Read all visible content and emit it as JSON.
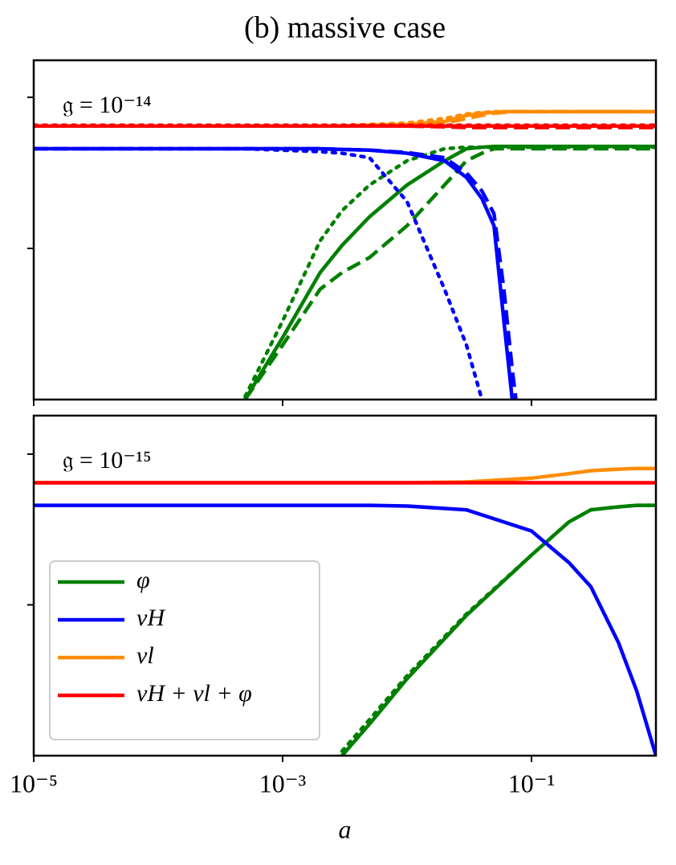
{
  "chart_data": [
    {
      "type": "line",
      "title": "(b) massive case",
      "annotation": "𝔤 = 10⁻¹⁴",
      "xscale": "log",
      "x": [
        1e-05,
        0.0001,
        0.0005,
        0.001,
        0.002,
        0.003,
        0.005,
        0.01,
        0.02,
        0.03,
        0.04,
        0.05,
        0.06,
        0.07,
        0.075,
        0.1,
        1
      ],
      "xlim": [
        1e-05,
        1
      ],
      "xticks": [
        1e-05,
        0.001,
        0.1
      ],
      "ylim": [
        0,
        2.245
      ],
      "yticks": [
        1,
        2
      ],
      "series": [
        {
          "color": "#008000",
          "linestyle": "solid",
          "values": [
            null,
            null,
            0,
            0.41,
            0.84,
            1.02,
            1.21,
            1.42,
            1.58,
            1.66,
            1.67,
            1.675,
            1.675,
            1.675,
            1.675,
            1.675,
            1.675
          ]
        },
        {
          "color": "#008000",
          "linestyle": "dashed",
          "values": [
            null,
            null,
            0,
            0.36,
            0.73,
            0.84,
            0.94,
            1.15,
            1.42,
            1.58,
            1.63,
            1.66,
            1.66,
            1.66,
            1.66,
            1.66,
            1.66
          ]
        },
        {
          "color": "#008000",
          "linestyle": "dotted",
          "values": [
            null,
            null,
            0.02,
            0.52,
            1.05,
            1.25,
            1.42,
            1.58,
            1.66,
            1.67,
            1.67,
            1.67,
            1.67,
            1.67,
            1.67,
            1.67,
            1.67
          ]
        },
        {
          "color": "#0000ff",
          "linestyle": "solid",
          "values": [
            1.66,
            1.66,
            1.66,
            1.66,
            1.66,
            1.655,
            1.65,
            1.63,
            1.58,
            1.47,
            1.33,
            1.15,
            0.52,
            0,
            null,
            null,
            null
          ]
        },
        {
          "color": "#0000ff",
          "linestyle": "dashed",
          "values": [
            1.66,
            1.66,
            1.66,
            1.66,
            1.66,
            1.655,
            1.65,
            1.635,
            1.6,
            1.5,
            1.38,
            1.23,
            0.73,
            0.2,
            0,
            null,
            null
          ]
        },
        {
          "color": "#0000ff",
          "linestyle": "dotted",
          "values": [
            1.66,
            1.66,
            1.66,
            1.65,
            1.64,
            1.63,
            1.6,
            1.31,
            0.73,
            0.36,
            0,
            null,
            null,
            null,
            null,
            null,
            null
          ]
        },
        {
          "color": "#ff8c00",
          "linestyle": "solid",
          "values": [
            1.81,
            1.81,
            1.81,
            1.81,
            1.81,
            1.81,
            1.815,
            1.82,
            1.84,
            1.88,
            1.895,
            1.9,
            1.905,
            1.905,
            1.905,
            1.905,
            1.905
          ]
        },
        {
          "color": "#ff8c00",
          "linestyle": "dashed",
          "values": [
            1.81,
            1.81,
            1.81,
            1.81,
            1.81,
            1.81,
            1.81,
            1.81,
            1.83,
            1.86,
            1.88,
            1.895,
            1.9,
            1.905,
            1.905,
            1.905,
            1.905
          ]
        },
        {
          "color": "#ff8c00",
          "linestyle": "dotted",
          "values": [
            1.815,
            1.815,
            1.815,
            1.815,
            1.815,
            1.815,
            1.82,
            1.83,
            1.86,
            1.89,
            1.9,
            1.905,
            1.905,
            1.905,
            1.905,
            1.905,
            1.905
          ]
        },
        {
          "color": "#ff0000",
          "linestyle": "solid",
          "values": [
            1.81,
            1.81,
            1.81,
            1.81,
            1.81,
            1.81,
            1.81,
            1.81,
            1.81,
            1.81,
            1.81,
            1.81,
            1.81,
            1.81,
            1.81,
            1.81,
            1.81
          ]
        },
        {
          "color": "#ff0000",
          "linestyle": "dashed",
          "values": [
            1.81,
            1.81,
            1.81,
            1.81,
            1.81,
            1.81,
            1.81,
            1.81,
            1.805,
            1.8,
            1.8,
            1.8,
            1.8,
            1.8,
            1.8,
            1.8,
            1.8
          ]
        },
        {
          "color": "#ff0000",
          "linestyle": "dotted",
          "values": [
            1.815,
            1.815,
            1.815,
            1.815,
            1.815,
            1.815,
            1.815,
            1.815,
            1.815,
            1.815,
            1.815,
            1.815,
            1.815,
            1.815,
            1.815,
            1.815,
            1.815
          ]
        }
      ]
    },
    {
      "type": "line",
      "annotation": "𝔤 = 10⁻¹⁵",
      "xlabel": "a",
      "xscale": "log",
      "legend": "lower left",
      "x": [
        1e-05,
        0.0001,
        0.001,
        0.003,
        0.005,
        0.01,
        0.03,
        0.1,
        0.2,
        0.3,
        0.5,
        0.7,
        1
      ],
      "xlim": [
        1e-05,
        1
      ],
      "xticks": [
        {
          "value": 1e-05,
          "label": "10⁻⁵"
        },
        {
          "value": 0.001,
          "label": "10⁻³"
        },
        {
          "value": 0.1,
          "label": "10⁻¹"
        }
      ],
      "ylim": [
        0,
        2.255
      ],
      "yticks": [
        1,
        2
      ],
      "series": [
        {
          "name": "φ",
          "color": "#008000",
          "linestyle": "solid",
          "values": [
            null,
            null,
            null,
            0,
            0.21,
            0.51,
            0.93,
            1.33,
            1.55,
            1.63,
            1.65,
            1.66,
            1.66
          ]
        },
        {
          "color": "#008000",
          "linestyle": "dotted",
          "values": [
            null,
            null,
            null,
            0.03,
            0.24,
            0.53,
            0.94,
            1.33,
            1.55,
            1.63,
            1.65,
            1.66,
            1.66
          ]
        },
        {
          "name": "νH",
          "color": "#0000ff",
          "linestyle": "solid",
          "values": [
            1.66,
            1.66,
            1.66,
            1.66,
            1.66,
            1.655,
            1.63,
            1.49,
            1.28,
            1.12,
            0.75,
            0.43,
            0
          ]
        },
        {
          "name": "νl",
          "color": "#ff8c00",
          "linestyle": "solid",
          "values": [
            1.81,
            1.81,
            1.81,
            1.81,
            1.81,
            1.81,
            1.815,
            1.84,
            1.87,
            1.89,
            1.9,
            1.905,
            1.905
          ]
        },
        {
          "name": "νH + νl + φ",
          "color": "#ff0000",
          "linestyle": "solid",
          "values": [
            1.81,
            1.81,
            1.81,
            1.81,
            1.81,
            1.81,
            1.81,
            1.81,
            1.81,
            1.81,
            1.81,
            1.81,
            1.81
          ]
        }
      ]
    }
  ]
}
